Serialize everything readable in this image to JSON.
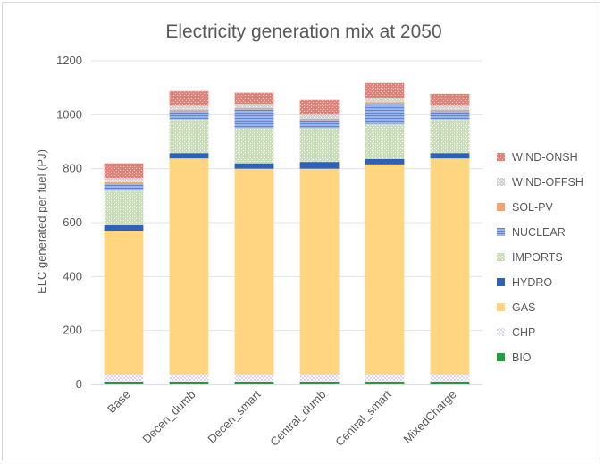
{
  "chart_data": {
    "type": "bar",
    "stacked": true,
    "title": "Electricity generation mix at 2050",
    "xlabel": "",
    "ylabel": "ELC generated per fuel (PJ)",
    "ylim": [
      0,
      1200
    ],
    "yticks": [
      "0",
      "200",
      "400",
      "600",
      "800",
      "1000",
      "1200"
    ],
    "grid": true,
    "legend_position": "right",
    "categories": [
      "Base",
      "Decen_dumb",
      "Decen_smart",
      "Central_dumb",
      "Central_smart",
      "MixedCharge"
    ],
    "series": [
      {
        "name": "BIO",
        "color": "#1e9e3f",
        "pattern": "solid",
        "values": [
          10,
          10,
          10,
          10,
          10,
          10
        ]
      },
      {
        "name": "CHP",
        "color": "#c7b6e6",
        "pattern": "dots",
        "values": [
          28,
          28,
          28,
          28,
          28,
          28
        ]
      },
      {
        "name": "GAS",
        "color": "#ffd580",
        "pattern": "solid",
        "values": [
          532,
          800,
          762,
          762,
          778,
          800
        ]
      },
      {
        "name": "HYDRO",
        "color": "#2c62b8",
        "pattern": "solid",
        "values": [
          20,
          20,
          20,
          25,
          20,
          20
        ]
      },
      {
        "name": "IMPORTS",
        "color": "#c8dfb8",
        "pattern": "speckle",
        "values": [
          130,
          125,
          130,
          125,
          130,
          125
        ]
      },
      {
        "name": "NUCLEAR",
        "color": "#9db4e8",
        "pattern": "hlines",
        "values": [
          25,
          30,
          70,
          30,
          75,
          30
        ]
      },
      {
        "name": "SOL-PV",
        "color": "#f5a36b",
        "pattern": "solid",
        "values": [
          5,
          5,
          5,
          5,
          5,
          5
        ]
      },
      {
        "name": "WIND-OFFSH",
        "color": "#d3d3d3",
        "pattern": "speckle",
        "values": [
          15,
          15,
          15,
          15,
          15,
          15
        ]
      },
      {
        "name": "WIND-ONSH",
        "color": "#e8807a",
        "pattern": "speckle",
        "values": [
          55,
          55,
          42,
          55,
          57,
          45
        ]
      }
    ]
  }
}
